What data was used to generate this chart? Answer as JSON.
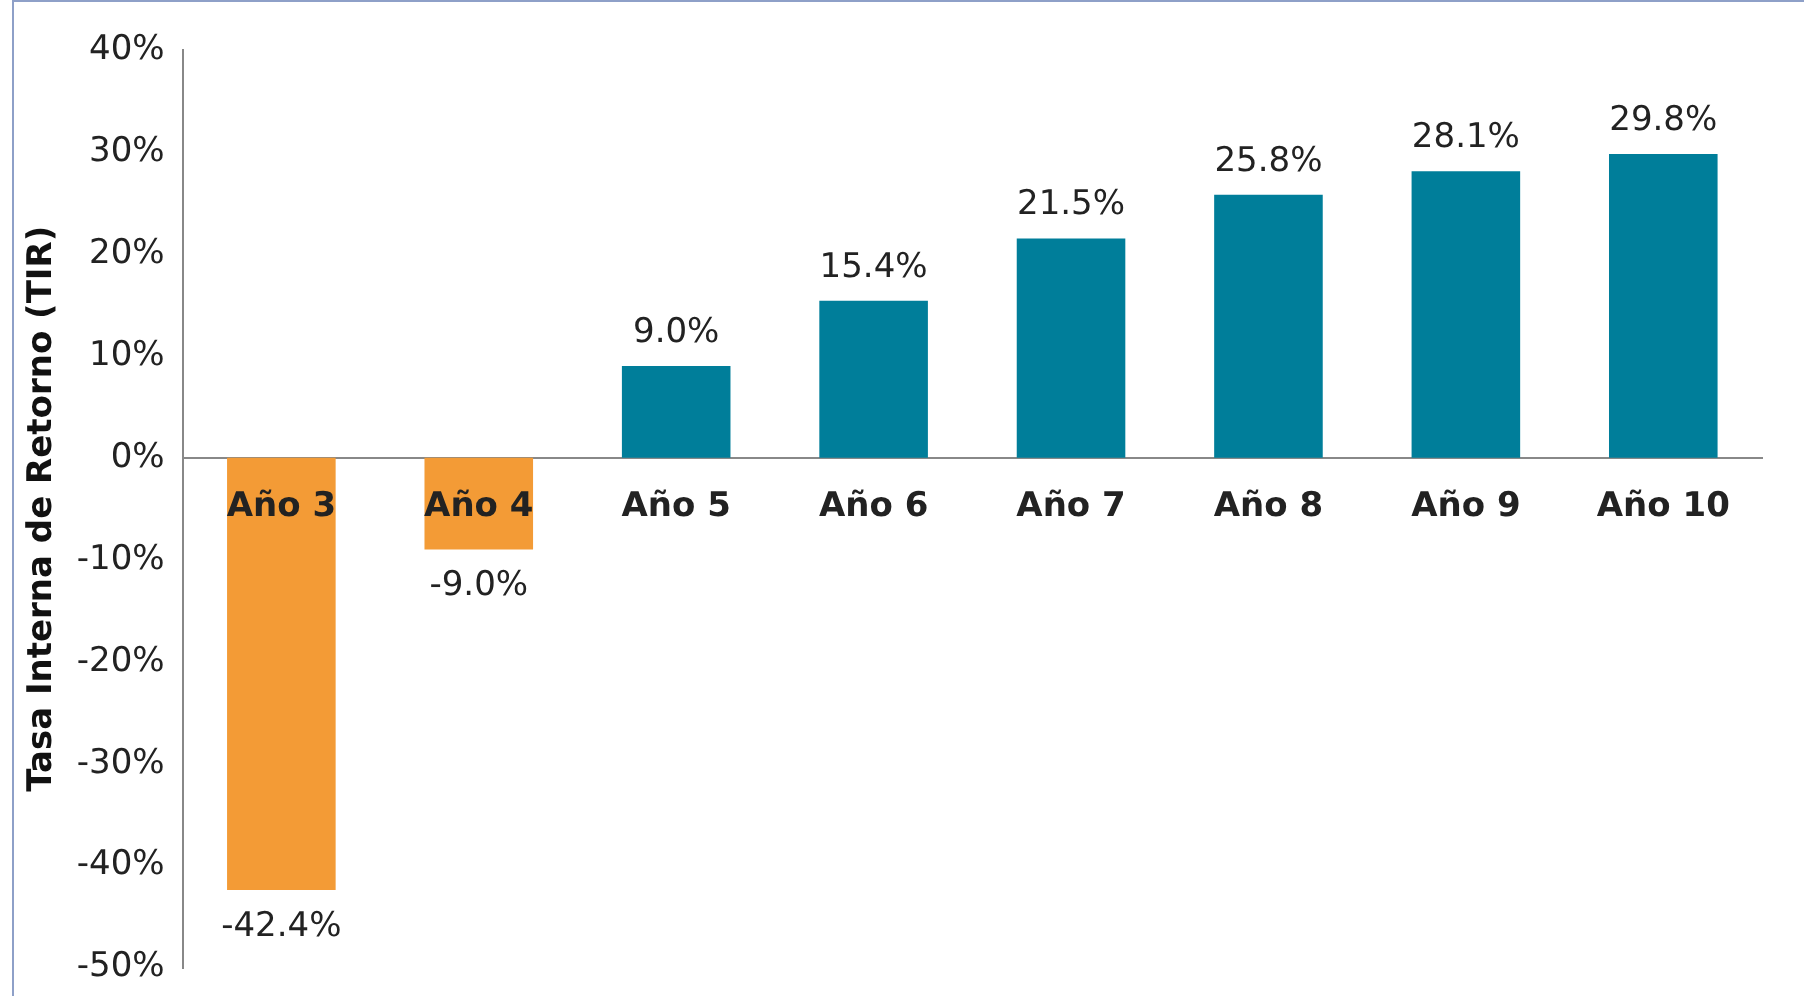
{
  "chart_data": {
    "type": "bar",
    "ylabel": "Tasa Interna de Retorno (TIR)",
    "categories": [
      "Año 3",
      "Año 4",
      "Año 5",
      "Año 6",
      "Año 7",
      "Año 8",
      "Año 9",
      "Año 10"
    ],
    "values": [
      -42.4,
      -9.0,
      9.0,
      15.4,
      21.5,
      25.8,
      28.1,
      29.8
    ],
    "colors": [
      "#f39b36",
      "#f39b36",
      "#007e9a",
      "#007e9a",
      "#007e9a",
      "#007e9a",
      "#007e9a",
      "#007e9a"
    ],
    "value_labels": [
      "-42.4%",
      "-9.0%",
      "9.0%",
      "15.4%",
      "21.5%",
      "25.8%",
      "28.1%",
      "29.8%"
    ],
    "ylim": [
      -50,
      40
    ],
    "yticks": [
      {
        "value": -50,
        "label": "-50%"
      },
      {
        "value": -40,
        "label": "-40%"
      },
      {
        "value": -30,
        "label": "-30%"
      },
      {
        "value": -20,
        "label": "-20%"
      },
      {
        "value": -10,
        "label": "-10%"
      },
      {
        "value": 0,
        "label": "0%"
      },
      {
        "value": 10,
        "label": "10%"
      },
      {
        "value": 20,
        "label": "20%"
      },
      {
        "value": 30,
        "label": "30%"
      },
      {
        "value": 40,
        "label": "40%"
      }
    ],
    "grid": false,
    "legend": false
  }
}
